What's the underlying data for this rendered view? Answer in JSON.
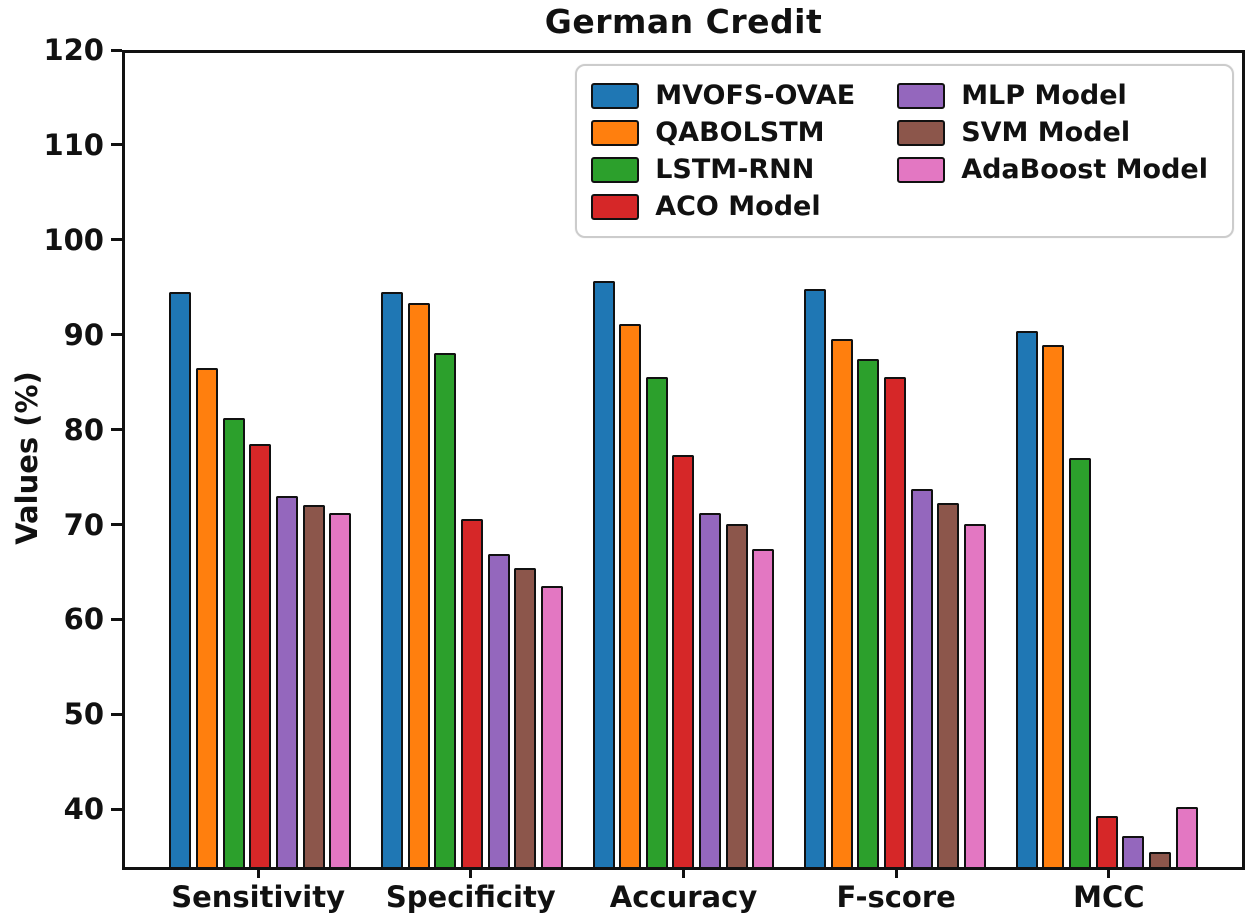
{
  "figure": {
    "title": "German Credit",
    "ylabel": "Values (%)"
  },
  "chart_data": {
    "type": "bar",
    "title": "German Credit",
    "xlabel": "",
    "ylabel": "Values (%)",
    "categories": [
      "Sensitivity",
      "Specificity",
      "Accuracy",
      "F-score",
      "MCC"
    ],
    "series": [
      {
        "name": "MVOFS-OVAE",
        "color": "#1f77b4",
        "values": [
          94.6,
          94.6,
          95.8,
          94.9,
          90.5
        ]
      },
      {
        "name": "QABOLSTM",
        "color": "#ff7f0e",
        "values": [
          86.6,
          93.5,
          91.2,
          89.6,
          89.0
        ]
      },
      {
        "name": "LSTM-RNN",
        "color": "#2ca02c",
        "values": [
          81.3,
          88.2,
          85.6,
          87.5,
          77.0
        ]
      },
      {
        "name": "ACO Model",
        "color": "#d62728",
        "values": [
          78.5,
          70.5,
          77.3,
          85.6,
          39.0
        ]
      },
      {
        "name": "MLP Model",
        "color": "#9467bd",
        "values": [
          73.0,
          66.8,
          71.2,
          73.7,
          36.9
        ]
      },
      {
        "name": "SVM Model",
        "color": "#8c564b",
        "values": [
          72.0,
          65.3,
          70.0,
          72.2,
          35.2
        ]
      },
      {
        "name": "AdaBoost Model",
        "color": "#e377c2",
        "values": [
          71.2,
          63.4,
          67.4,
          70.0,
          40.0
        ]
      }
    ],
    "ylim": [
      33.6,
      120
    ],
    "yticks": [
      40,
      50,
      60,
      70,
      80,
      90,
      100,
      110,
      120
    ],
    "grid": false,
    "legend_position": "upper right",
    "legend_columns": 2,
    "bar_edge_color": "#111111",
    "axis_color": "#111111"
  }
}
